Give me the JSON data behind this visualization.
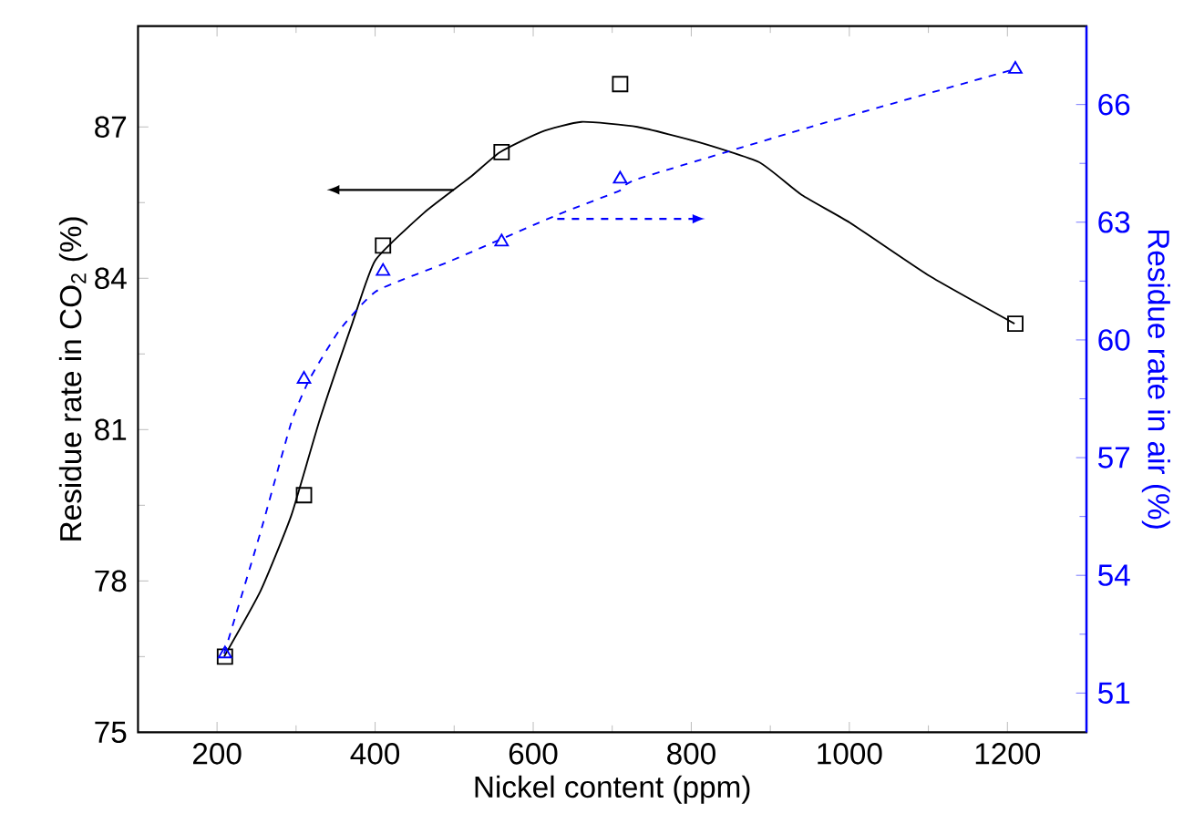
{
  "chart_data": {
    "type": "scatter",
    "xlabel": "Nickel content (ppm)",
    "ylabel": "Residue rate in CO$_{2}$ (%)",
    "y2label": "Residue rate in air (%)",
    "xlim": [
      100,
      1300
    ],
    "xticks": [
      200,
      400,
      600,
      800,
      1000,
      1200
    ],
    "ylim": [
      75,
      89
    ],
    "yticks": [
      75,
      78,
      81,
      84,
      87
    ],
    "y2lim": [
      50,
      68
    ],
    "y2ticks": [
      51,
      54,
      57,
      60,
      63,
      66
    ],
    "series": [
      {
        "color": "#000000",
        "marker": "square",
        "x": [
          210,
          310,
          410,
          560,
          710,
          1210
        ],
        "values": [
          76.5,
          79.7,
          84.65,
          86.5,
          87.85,
          83.1
        ]
      },
      {
        "axis": "y2",
        "color": "#0000ff",
        "marker": "triangle",
        "x": [
          210,
          310,
          410,
          560,
          710,
          1210
        ],
        "values": [
          52.0,
          59.0,
          61.75,
          62.5,
          64.1,
          66.9
        ]
      },
      {
        "type": "line",
        "color": "#000000",
        "line_style": "solid",
        "x": [
          209,
          255,
          294,
          330,
          371,
          400,
          462,
          520,
          558,
          610,
          661,
          732,
          809,
          886,
          940,
          1001,
          1101,
          1209
        ],
        "values": [
          76.5,
          77.8,
          79.3,
          81.2,
          83.1,
          84.35,
          85.3,
          86.0,
          86.5,
          86.9,
          87.1,
          87.0,
          86.7,
          86.3,
          85.65,
          85.1,
          84.05,
          83.1
        ]
      },
      {
        "type": "line",
        "axis": "y2",
        "color": "#0000ff",
        "line_style": "dashed",
        "x": [
          209,
          255,
          294,
          317,
          355,
          402,
          494,
          632,
          709,
          732,
          963,
          1209
        ],
        "values": [
          52.0,
          55.1,
          57.9,
          59.0,
          60.25,
          61.25,
          62.0,
          63.2,
          63.8,
          64.1,
          65.5,
          66.9
        ]
      }
    ]
  }
}
